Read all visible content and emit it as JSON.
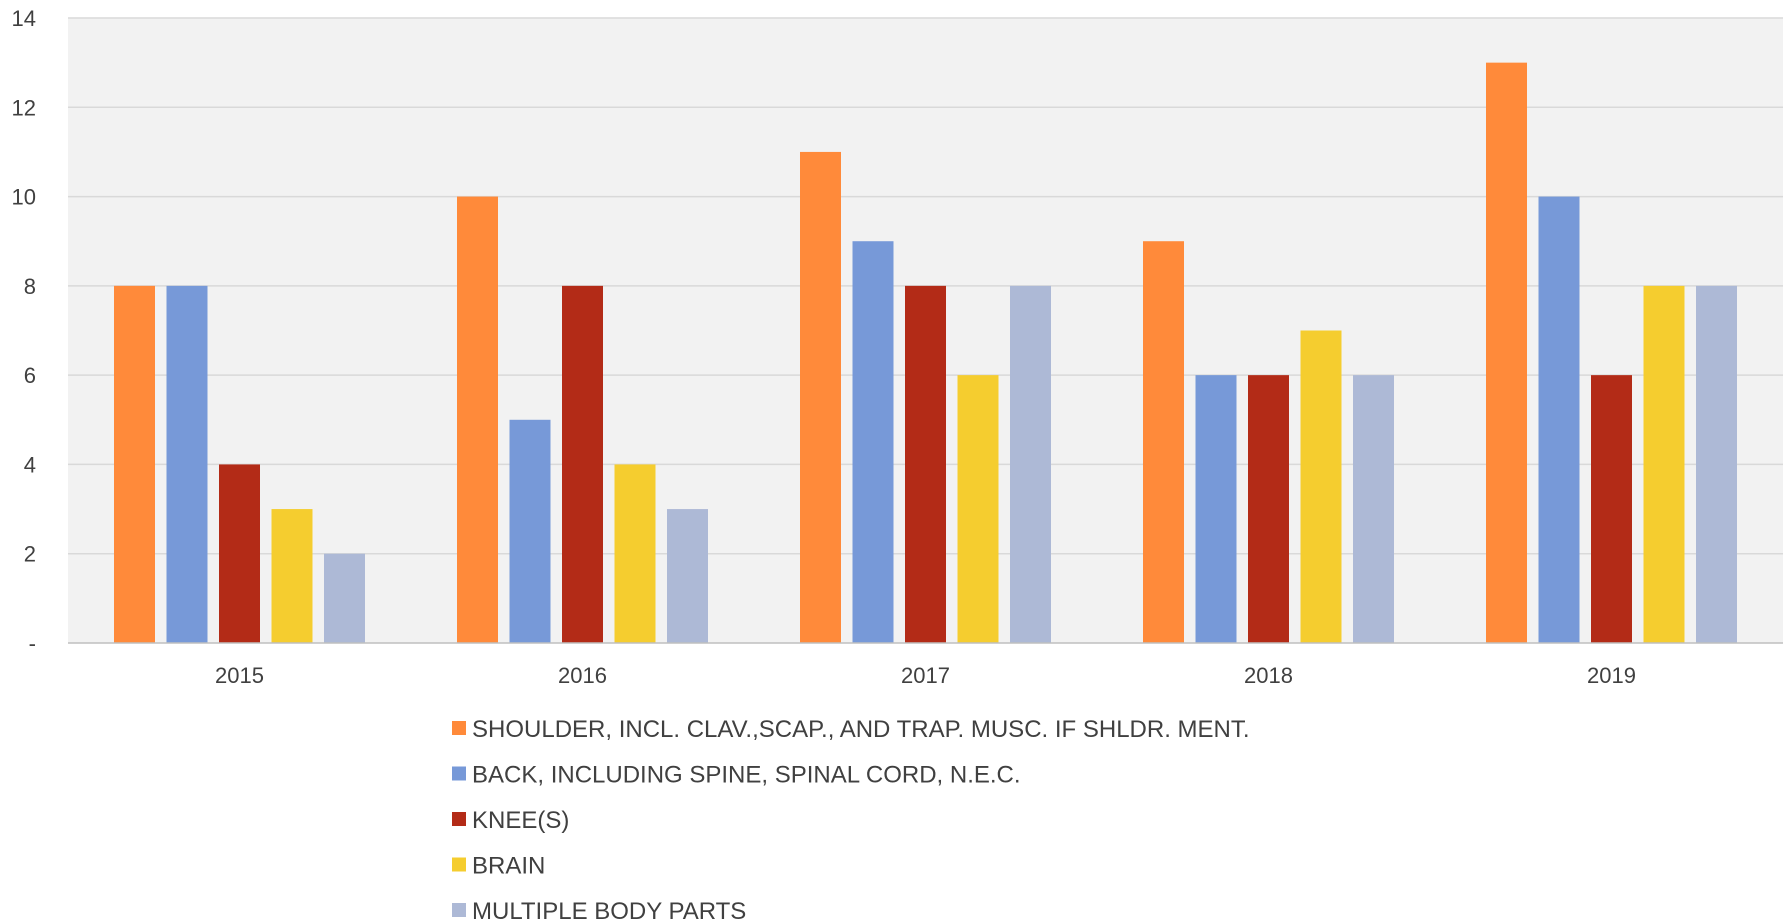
{
  "chart_data": {
    "type": "bar",
    "title": "",
    "xlabel": "",
    "ylabel": "",
    "categories": [
      "2015",
      "2016",
      "2017",
      "2018",
      "2019"
    ],
    "ylim": [
      0,
      14
    ],
    "yticks": [
      0,
      2,
      4,
      6,
      8,
      10,
      12,
      14
    ],
    "ytick_labels": [
      "-",
      "2",
      "4",
      "6",
      "8",
      "10",
      "12",
      "14"
    ],
    "grid": true,
    "legend_position": "bottom",
    "plot_background": "#f2f2f2",
    "series": [
      {
        "name": "SHOULDER, INCL. CLAV.,SCAP., AND TRAP. MUSC. IF SHLDR. MENT.",
        "color": "#ff8a3a",
        "values": [
          8,
          10,
          11,
          9,
          13
        ]
      },
      {
        "name": "BACK, INCLUDING SPINE, SPINAL CORD, N.E.C.",
        "color": "#7799d8",
        "values": [
          8,
          5,
          9,
          6,
          10
        ]
      },
      {
        "name": "KNEE(S)",
        "color": "#b32b17",
        "values": [
          4,
          8,
          8,
          6,
          6
        ]
      },
      {
        "name": "BRAIN",
        "color": "#f5cd2f",
        "values": [
          3,
          4,
          6,
          7,
          8
        ]
      },
      {
        "name": "MULTIPLE BODY PARTS",
        "color": "#adb9d6",
        "values": [
          2,
          3,
          8,
          6,
          8
        ]
      }
    ]
  }
}
